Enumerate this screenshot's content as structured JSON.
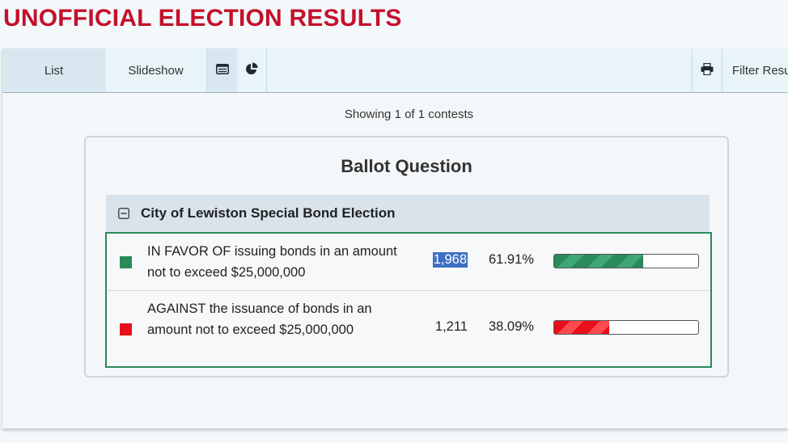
{
  "page": {
    "title": "UNOFFICIAL ELECTION RESULTS"
  },
  "toolbar": {
    "list_label": "List",
    "slideshow_label": "Slideshow",
    "icons": [
      "table-view-icon",
      "pie-chart-icon",
      "print-icon"
    ],
    "filter_label": "Filter Results"
  },
  "status": {
    "showing": "Showing 1 of 1 contests"
  },
  "card": {
    "title": "Ballot Question",
    "contest": {
      "name": "City of Lewiston Special Bond Election",
      "choices": [
        {
          "name": "IN FAVOR OF issuing bonds in an amount not to exceed $25,000,000",
          "votes": "1,968",
          "percent": "61.91%",
          "fraction": 0.6191,
          "color": "#2b8a5a",
          "stripe": "#3fa777"
        },
        {
          "name": "AGAINST the issuance of bonds in an amount not to exceed $25,000,000",
          "votes": "1,211",
          "percent": "38.09%",
          "fraction": 0.3809,
          "color": "#e8101a",
          "stripe": "#ff4a4f"
        }
      ]
    }
  },
  "colors": {
    "title": "#c5102b",
    "border_accent": "#2b8a5a",
    "selection": "#3d6fc4"
  }
}
